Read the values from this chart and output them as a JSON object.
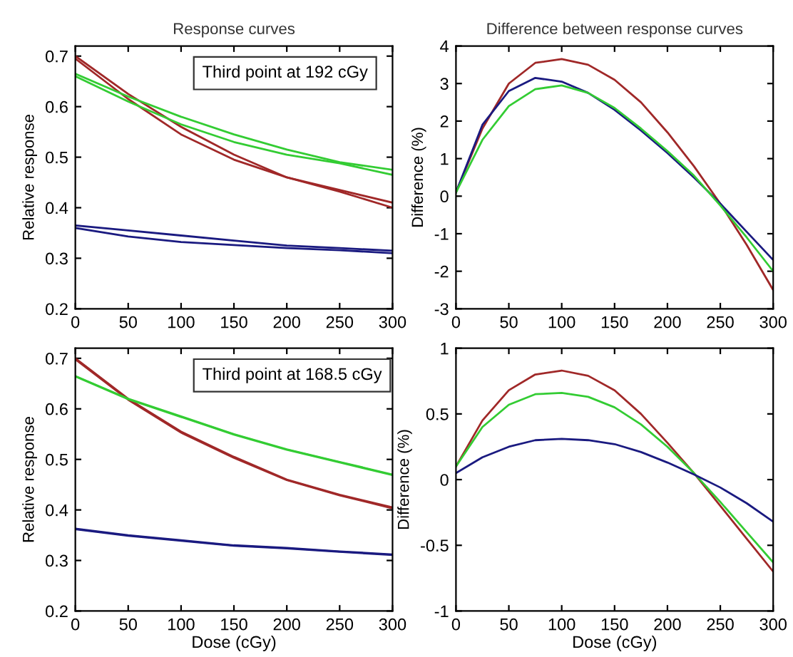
{
  "chart_data": [
    {
      "type": "line",
      "title": "Response curves",
      "ylabel": "Relative response",
      "annotations": [
        "Third point at 192 cGy"
      ],
      "x": [
        0,
        50,
        100,
        150,
        200,
        250,
        300
      ],
      "xlim": [
        0,
        300
      ],
      "xticks": [
        0,
        50,
        100,
        150,
        200,
        250,
        300
      ],
      "ylim": [
        0.2,
        0.72
      ],
      "yticks": [
        0.2,
        0.3,
        0.4,
        0.5,
        0.6,
        0.7
      ],
      "grid": false,
      "legend": false,
      "marker": "none",
      "line_style": "solid",
      "series": [
        {
          "color": "#a02828",
          "values": [
            0.7,
            0.625,
            0.56,
            0.505,
            0.46,
            0.435,
            0.41
          ]
        },
        {
          "color": "#a02828",
          "values": [
            0.695,
            0.615,
            0.545,
            0.495,
            0.46,
            0.432,
            0.4
          ]
        },
        {
          "color": "#33cc33",
          "values": [
            0.665,
            0.62,
            0.58,
            0.545,
            0.515,
            0.49,
            0.475
          ]
        },
        {
          "color": "#33cc33",
          "values": [
            0.66,
            0.61,
            0.565,
            0.53,
            0.505,
            0.488,
            0.465
          ]
        },
        {
          "color": "#1a1a80",
          "values": [
            0.365,
            0.355,
            0.345,
            0.335,
            0.325,
            0.32,
            0.315
          ]
        },
        {
          "color": "#1a1a80",
          "values": [
            0.36,
            0.343,
            0.332,
            0.326,
            0.32,
            0.316,
            0.31
          ]
        }
      ]
    },
    {
      "type": "line",
      "title": "Difference between response curves",
      "ylabel": "Difference (%)",
      "x": [
        0,
        25,
        50,
        75,
        100,
        125,
        150,
        175,
        200,
        225,
        250,
        275,
        300
      ],
      "xlim": [
        0,
        300
      ],
      "xticks": [
        0,
        50,
        100,
        150,
        200,
        250,
        300
      ],
      "ylim": [
        -3,
        4
      ],
      "yticks": [
        -3,
        -2,
        -1,
        0,
        1,
        2,
        3,
        4
      ],
      "grid": false,
      "legend": false,
      "marker": "none",
      "line_style": "solid",
      "series": [
        {
          "color": "#a02828",
          "values": [
            0.1,
            1.8,
            3.0,
            3.55,
            3.65,
            3.5,
            3.1,
            2.5,
            1.7,
            0.8,
            -0.2,
            -1.3,
            -2.5
          ]
        },
        {
          "color": "#1a1a80",
          "values": [
            0.1,
            1.9,
            2.8,
            3.15,
            3.05,
            2.75,
            2.3,
            1.75,
            1.15,
            0.5,
            -0.2,
            -0.95,
            -1.7
          ]
        },
        {
          "color": "#33cc33",
          "values": [
            0.1,
            1.5,
            2.4,
            2.85,
            2.95,
            2.75,
            2.35,
            1.8,
            1.2,
            0.55,
            -0.25,
            -1.1,
            -2.0
          ]
        }
      ]
    },
    {
      "type": "line",
      "xlabel": "Dose (cGy)",
      "ylabel": "Relative response",
      "annotations": [
        "Third point at 168.5 cGy"
      ],
      "x": [
        0,
        50,
        100,
        150,
        200,
        250,
        300
      ],
      "xlim": [
        0,
        300
      ],
      "xticks": [
        0,
        50,
        100,
        150,
        200,
        250,
        300
      ],
      "ylim": [
        0.2,
        0.72
      ],
      "yticks": [
        0.2,
        0.3,
        0.4,
        0.5,
        0.6,
        0.7
      ],
      "grid": false,
      "legend": false,
      "marker": "none",
      "line_style": "solid",
      "series": [
        {
          "color": "#a02828",
          "values": [
            0.7,
            0.62,
            0.555,
            0.505,
            0.46,
            0.43,
            0.405
          ]
        },
        {
          "color": "#a02828",
          "values": [
            0.698,
            0.618,
            0.553,
            0.503,
            0.459,
            0.429,
            0.403
          ]
        },
        {
          "color": "#33cc33",
          "values": [
            0.665,
            0.62,
            0.585,
            0.55,
            0.52,
            0.495,
            0.47
          ]
        },
        {
          "color": "#33cc33",
          "values": [
            0.664,
            0.619,
            0.584,
            0.549,
            0.519,
            0.494,
            0.469
          ]
        },
        {
          "color": "#1a1a80",
          "values": [
            0.363,
            0.35,
            0.34,
            0.33,
            0.325,
            0.318,
            0.312
          ]
        },
        {
          "color": "#1a1a80",
          "values": [
            0.362,
            0.349,
            0.339,
            0.329,
            0.324,
            0.317,
            0.311
          ]
        }
      ]
    },
    {
      "type": "line",
      "xlabel": "Dose (cGy)",
      "ylabel": "Difference (%)",
      "x": [
        0,
        25,
        50,
        75,
        100,
        125,
        150,
        175,
        200,
        225,
        250,
        275,
        300
      ],
      "xlim": [
        0,
        300
      ],
      "xticks": [
        0,
        50,
        100,
        150,
        200,
        250,
        300
      ],
      "ylim": [
        -1,
        1
      ],
      "yticks": [
        -1,
        -0.5,
        0,
        0.5,
        1
      ],
      "grid": false,
      "legend": false,
      "marker": "none",
      "line_style": "solid",
      "series": [
        {
          "color": "#a02828",
          "values": [
            0.1,
            0.45,
            0.68,
            0.8,
            0.83,
            0.79,
            0.68,
            0.5,
            0.28,
            0.05,
            -0.2,
            -0.45,
            -0.7
          ]
        },
        {
          "color": "#33cc33",
          "values": [
            0.1,
            0.4,
            0.57,
            0.65,
            0.66,
            0.63,
            0.55,
            0.42,
            0.25,
            0.05,
            -0.17,
            -0.4,
            -0.63
          ]
        },
        {
          "color": "#1a1a80",
          "values": [
            0.05,
            0.17,
            0.25,
            0.3,
            0.31,
            0.3,
            0.27,
            0.21,
            0.13,
            0.04,
            -0.06,
            -0.18,
            -0.32
          ]
        }
      ]
    }
  ]
}
